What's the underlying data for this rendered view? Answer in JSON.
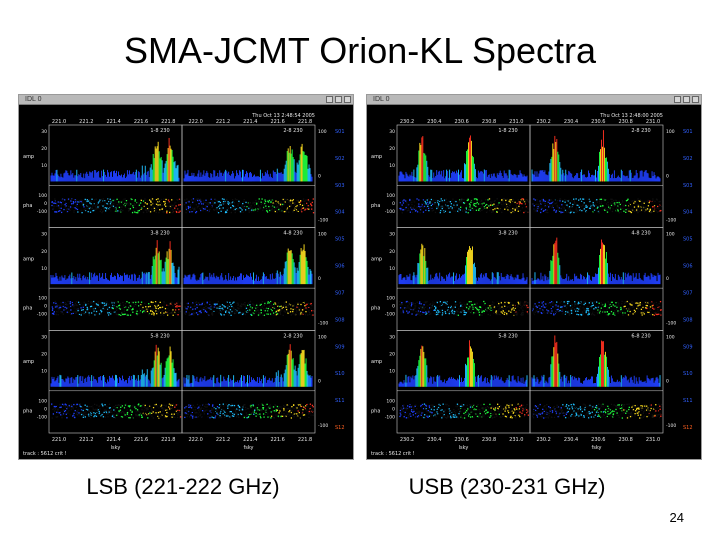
{
  "slide": {
    "title": "SMA-JCMT Orion-KL Spectra",
    "page_number": "24"
  },
  "windows": [
    {
      "id": "lsb",
      "window_title": "IDL 0",
      "caption": "LSB (221-222 GHz)",
      "timestamp": "Thu Oct 13 2:48:54 2005",
      "top_ticks": [
        "221.0",
        "221.2",
        "221.4",
        "221.6",
        "221.8",
        "222.0",
        "221.2",
        "221.4",
        "221.6",
        "221.8"
      ],
      "bottom_ticks": [
        "221.0",
        "221.2",
        "221.4",
        "221.6",
        "221.8",
        "222.0",
        "221.2",
        "221.4",
        "221.6",
        "221.8"
      ],
      "baselines": [
        "1-8 230",
        "2-8 230",
        "3-8 230",
        "4-8 230",
        "5-8 230",
        "2-8 230"
      ],
      "bottom_labels": [
        "lsky",
        "fsky"
      ],
      "footer": "track : 5612 crit !",
      "line_positions": [
        0.82,
        0.92
      ],
      "line_strength": 0.75
    },
    {
      "id": "usb",
      "window_title": "IDL 0",
      "caption": "USB (230-231 GHz)",
      "timestamp": "Thu Oct 13 2:48:00 2005",
      "top_ticks": [
        "230.2",
        "230.4",
        "230.6",
        "230.8",
        "231.0",
        "230.2",
        "230.4",
        "230.6",
        "230.8",
        "231.0"
      ],
      "bottom_ticks": [
        "230.2",
        "230.4",
        "230.6",
        "230.8",
        "231.0",
        "230.2",
        "230.4",
        "230.6",
        "230.8",
        "231.0"
      ],
      "baselines": [
        "1-8 230",
        "2-8 230",
        "3-8 230",
        "4-8 230",
        "5-8 230",
        "6-8 230"
      ],
      "bottom_labels": [
        "lsky",
        "fsky"
      ],
      "footer": "track : 5612 crit !",
      "line_positions": [
        0.18,
        0.55
      ],
      "line_strength": 1.0
    }
  ],
  "axis": {
    "amp_label": "amp",
    "pha_label": "pha",
    "amp_ticks": [
      "30",
      "20",
      "10"
    ],
    "pha_ticks": [
      "100",
      "0",
      "-100"
    ],
    "right_pha_ticks": [
      "100",
      "0",
      "-100"
    ],
    "chunk_labels": [
      "S01",
      "S02",
      "S03",
      "S04",
      "S05",
      "S06",
      "S07",
      "S08",
      "S09",
      "S10",
      "S11",
      "S12"
    ]
  },
  "colors": {
    "spectrum_low": "#2040ff",
    "spectrum_mid": "#20ff40",
    "spectrum_high": "#ffe020",
    "spectrum_peak": "#ff3020",
    "frame": "#cfcfcf",
    "text": "#e8e8e8",
    "chunk_label": "#3060ff",
    "chunk_label_last": "#ff6020"
  }
}
